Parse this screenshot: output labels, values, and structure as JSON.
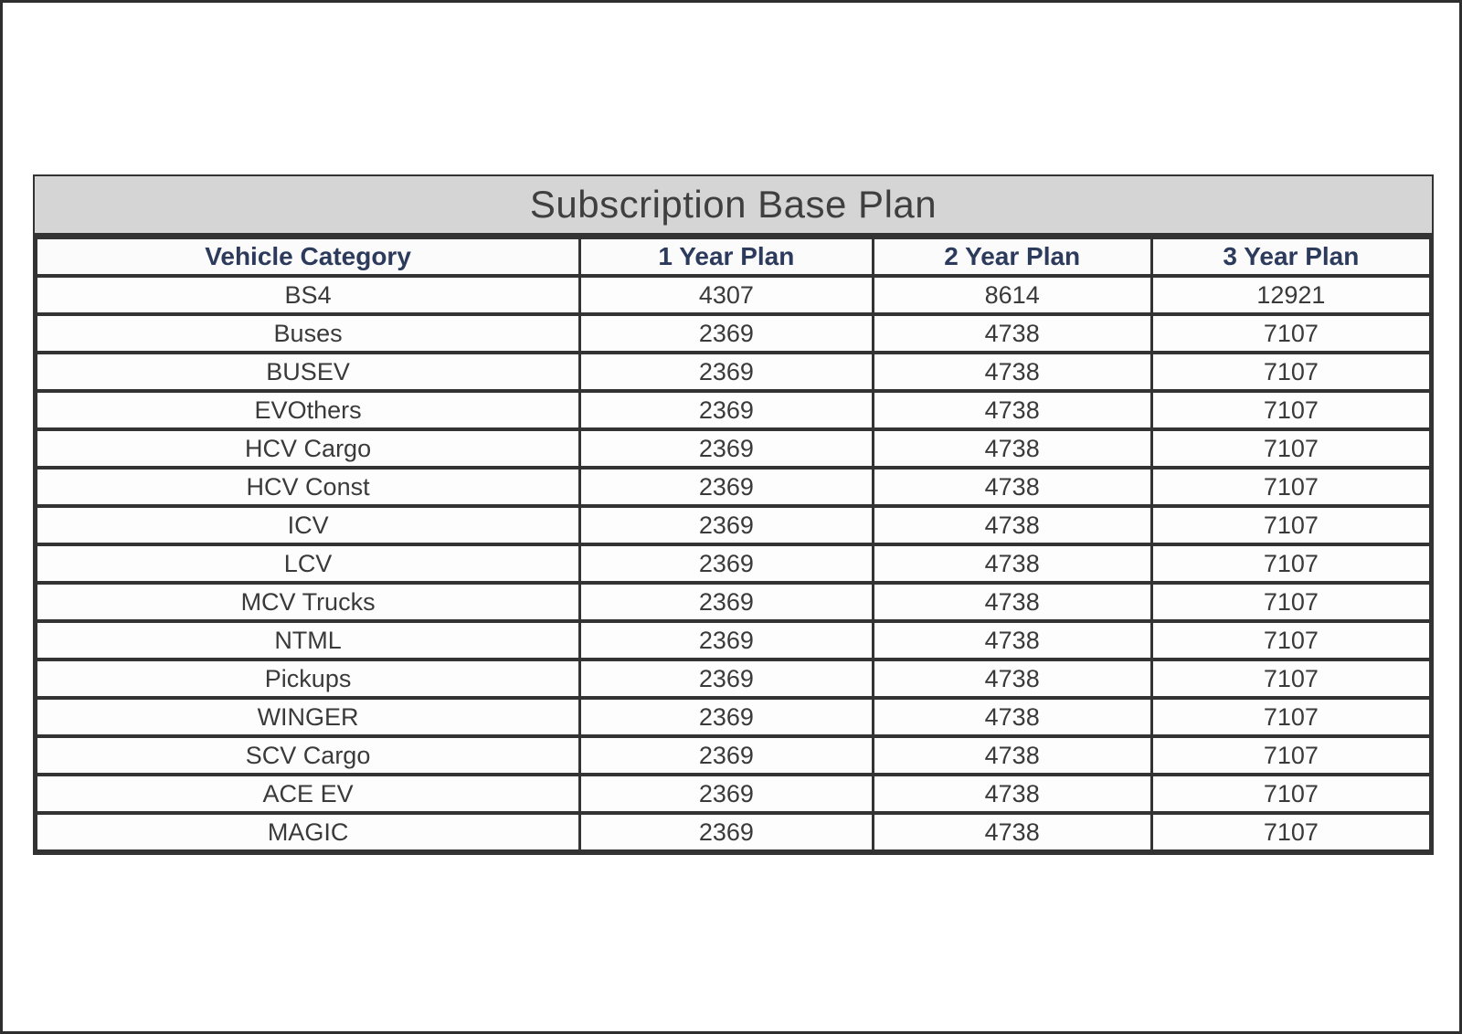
{
  "table": {
    "title": "Subscription Base Plan",
    "columns": [
      "Vehicle Category",
      "1 Year Plan",
      "2 Year Plan",
      "3 Year Plan"
    ],
    "rows": [
      [
        "BS4",
        "4307",
        "8614",
        "12921"
      ],
      [
        "Buses",
        "2369",
        "4738",
        "7107"
      ],
      [
        "BUSEV",
        "2369",
        "4738",
        "7107"
      ],
      [
        "EVOthers",
        "2369",
        "4738",
        "7107"
      ],
      [
        "HCV Cargo",
        "2369",
        "4738",
        "7107"
      ],
      [
        "HCV Const",
        "2369",
        "4738",
        "7107"
      ],
      [
        "ICV",
        "2369",
        "4738",
        "7107"
      ],
      [
        "LCV",
        "2369",
        "4738",
        "7107"
      ],
      [
        "MCV Trucks",
        "2369",
        "4738",
        "7107"
      ],
      [
        "NTML",
        "2369",
        "4738",
        "7107"
      ],
      [
        "Pickups",
        "2369",
        "4738",
        "7107"
      ],
      [
        "WINGER",
        "2369",
        "4738",
        "7107"
      ],
      [
        "SCV Cargo",
        "2369",
        "4738",
        "7107"
      ],
      [
        "ACE EV",
        "2369",
        "4738",
        "7107"
      ],
      [
        "MAGIC",
        "2369",
        "4738",
        "7107"
      ]
    ],
    "colors": {
      "title_bg": "#d5d5d5",
      "title_text": "#3f3f3f",
      "header_text": "#2c3a5c",
      "body_text": "#3a3a3a",
      "border": "#333333",
      "page_border": "#2e2e2e",
      "background": "#ffffff"
    }
  }
}
